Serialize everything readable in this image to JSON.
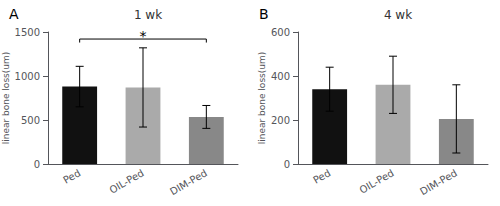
{
  "chart_data": [
    {
      "type": "bar",
      "title": "1 wk",
      "panel_label": "A",
      "categories": [
        "Ped",
        "OIL-Ped",
        "DIM-Ped"
      ],
      "values": [
        880,
        870,
        535
      ],
      "errors": [
        230,
        450,
        130
      ],
      "colors": [
        "#111111",
        "#aaaaaa",
        "#888888"
      ],
      "ylim": [
        0,
        1500
      ],
      "yticks": [
        0,
        500,
        1000,
        1500
      ],
      "ylabel": "linear bone loss(um)",
      "grid": false,
      "significance": {
        "x1": "Ped",
        "x2": "DIM-Ped",
        "y": 1420,
        "tick": 40,
        "label": "*"
      }
    },
    {
      "type": "bar",
      "title": "4 wk",
      "panel_label": "B",
      "categories": [
        "Ped",
        "OIL-Ped",
        "DIM-Ped"
      ],
      "values": [
        340,
        360,
        205
      ],
      "errors": [
        100,
        130,
        155
      ],
      "colors": [
        "#111111",
        "#aaaaaa",
        "#888888"
      ],
      "ylim": [
        0,
        600
      ],
      "yticks": [
        0,
        200,
        400,
        600
      ],
      "ylabel": "linear bone loss(um)",
      "grid": false
    }
  ]
}
